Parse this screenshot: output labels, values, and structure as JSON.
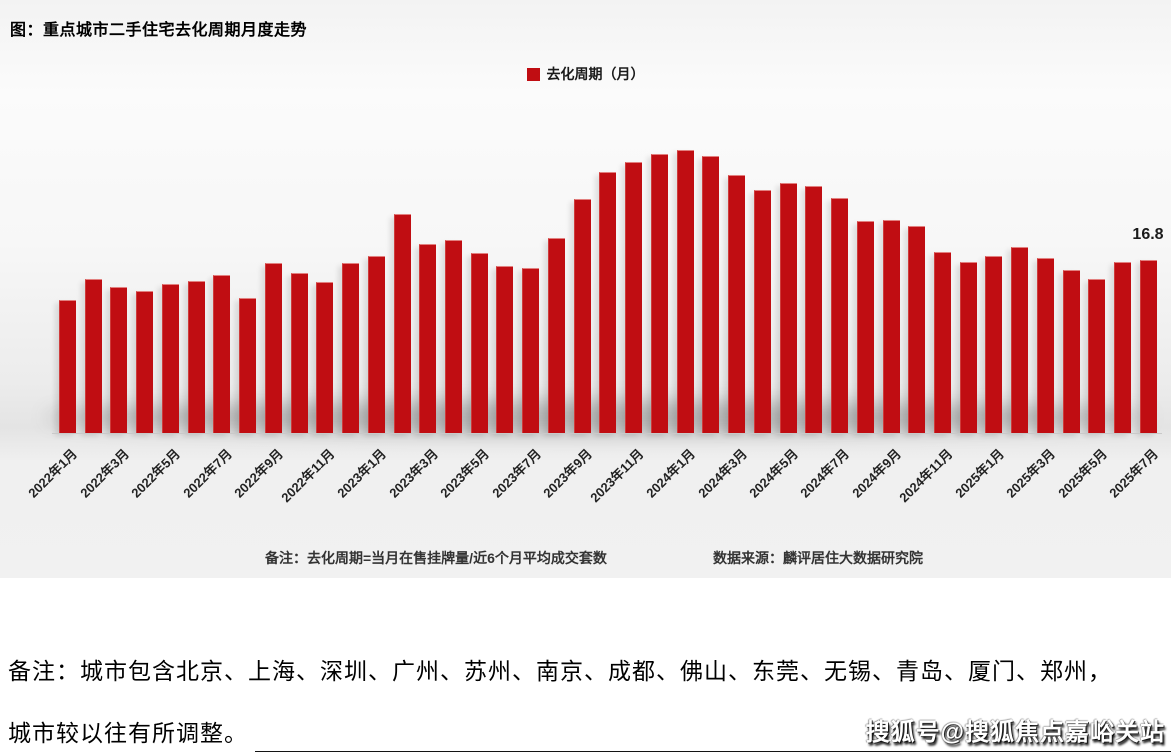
{
  "title": "图：重点城市二手住宅去化周期月度走势",
  "legend": {
    "label": "去化周期（月）",
    "color": "#c00d12"
  },
  "chart_data": {
    "type": "bar",
    "title": "图：重点城市二手住宅去化周期月度走势",
    "series_name": "去化周期（月）",
    "bar_color": "#c00d12",
    "ylim": [
      0,
      28.5
    ],
    "grid": false,
    "legend_position": "top-center",
    "categories": [
      "2022年1月",
      "2022年2月",
      "2022年3月",
      "2022年4月",
      "2022年5月",
      "2022年6月",
      "2022年7月",
      "2022年8月",
      "2022年9月",
      "2022年10月",
      "2022年11月",
      "2022年12月",
      "2023年1月",
      "2023年2月",
      "2023年3月",
      "2023年4月",
      "2023年5月",
      "2023年6月",
      "2023年7月",
      "2023年8月",
      "2023年9月",
      "2023年10月",
      "2023年11月",
      "2023年12月",
      "2024年1月",
      "2024年2月",
      "2024年3月",
      "2024年4月",
      "2024年5月",
      "2024年6月",
      "2024年7月",
      "2024年8月",
      "2024年9月",
      "2024年10月",
      "2024年11月",
      "2024年12月",
      "2025年1月",
      "2025年2月",
      "2025年3月",
      "2025年4月",
      "2025年5月",
      "2025年6月",
      "2025年7月"
    ],
    "values": [
      12.9,
      15.0,
      14.2,
      13.8,
      14.5,
      14.8,
      15.3,
      13.1,
      16.5,
      15.5,
      14.7,
      16.5,
      17.2,
      21.3,
      18.4,
      18.7,
      17.5,
      16.2,
      16.0,
      18.9,
      22.7,
      25.3,
      26.3,
      27.1,
      27.5,
      26.9,
      25.1,
      23.6,
      24.3,
      24.0,
      22.8,
      20.6,
      20.7,
      20.1,
      17.6,
      16.6,
      17.2,
      18.1,
      17.0,
      15.8,
      15.0,
      16.6,
      16.8
    ],
    "x_tick_labels": [
      "2022年1月",
      "2022年3月",
      "2022年5月",
      "2022年7月",
      "2022年9月",
      "2022年11月",
      "2023年1月",
      "2023年3月",
      "2023年5月",
      "2023年7月",
      "2023年9月",
      "2023年11月",
      "2024年1月",
      "2024年3月",
      "2024年5月",
      "2024年7月",
      "2024年9月",
      "2024年11月",
      "2025年1月",
      "2025年3月",
      "2025年5月",
      "2025年7月"
    ],
    "last_value_label": "16.8"
  },
  "chart_notes": {
    "formula": "备注：去化周期=当月在售挂牌量/近6个月平均成交套数",
    "source": "数据来源：麟评居住大数据研究院"
  },
  "footer": {
    "note_line1": "备注：城市包含北京、上海、深圳、广州、苏州、南京、成都、佛山、东莞、无锡、青岛、厦门、郑州，",
    "note_line2": "城市较以往有所调整。",
    "watermark": "搜狐号@搜狐焦点嘉峪关站"
  }
}
